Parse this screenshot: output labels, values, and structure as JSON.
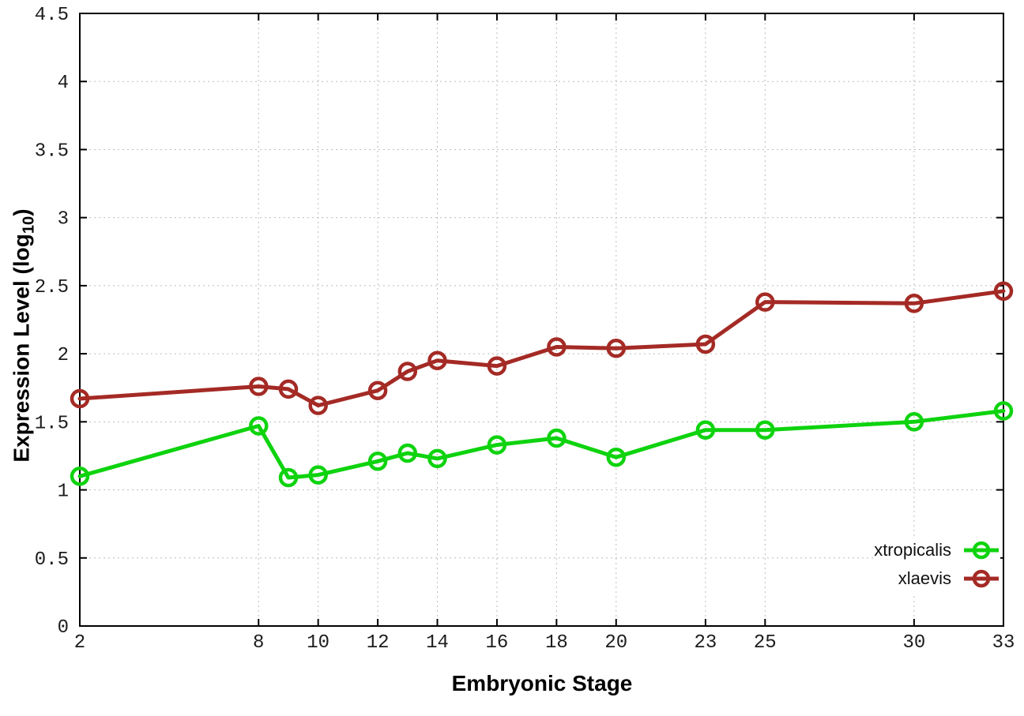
{
  "chart_data": {
    "type": "line",
    "x": [
      2,
      8,
      9,
      10,
      12,
      13,
      14,
      16,
      18,
      20,
      23,
      25,
      30,
      33
    ],
    "series": [
      {
        "name": "xtropicalis",
        "color": "#0ed30e",
        "values": [
          1.1,
          1.47,
          1.09,
          1.11,
          1.21,
          1.27,
          1.23,
          1.33,
          1.38,
          1.24,
          1.44,
          1.44,
          1.5,
          1.58
        ]
      },
      {
        "name": "xlaevis",
        "color": "#a42a25",
        "values": [
          1.67,
          1.76,
          1.74,
          1.62,
          1.73,
          1.87,
          1.95,
          1.91,
          2.05,
          2.04,
          2.07,
          2.38,
          2.37,
          2.46
        ]
      }
    ],
    "xlabel": "Embryonic Stage",
    "ylabel": {
      "prefix": "Expression Level (log",
      "sub": "10",
      "suffix": ")"
    },
    "xlim": [
      2,
      33
    ],
    "ylim": [
      0,
      4.5
    ],
    "xticks": [
      2,
      8,
      10,
      12,
      14,
      16,
      18,
      20,
      23,
      25,
      30,
      33
    ],
    "xtick_labels": [
      "2",
      "8",
      "10",
      "12",
      "14",
      "16",
      "18",
      "20",
      "23",
      "25",
      "30",
      "33"
    ],
    "yticks": [
      0,
      0.5,
      1,
      1.5,
      2,
      2.5,
      3,
      3.5,
      4,
      4.5
    ],
    "ytick_labels": [
      "0",
      "0.5",
      "1",
      "1.5",
      "2",
      "2.5",
      "3",
      "3.5",
      "4",
      "4.5"
    ],
    "grid": true,
    "grid_style": "dotted",
    "legend_position": "inside-bottom-right",
    "marker": "open-circle",
    "colors": {
      "background": "#ffffff",
      "axis": "#000000",
      "grid": "#bcbcbc",
      "tick_text": "#1c1c1c"
    }
  }
}
